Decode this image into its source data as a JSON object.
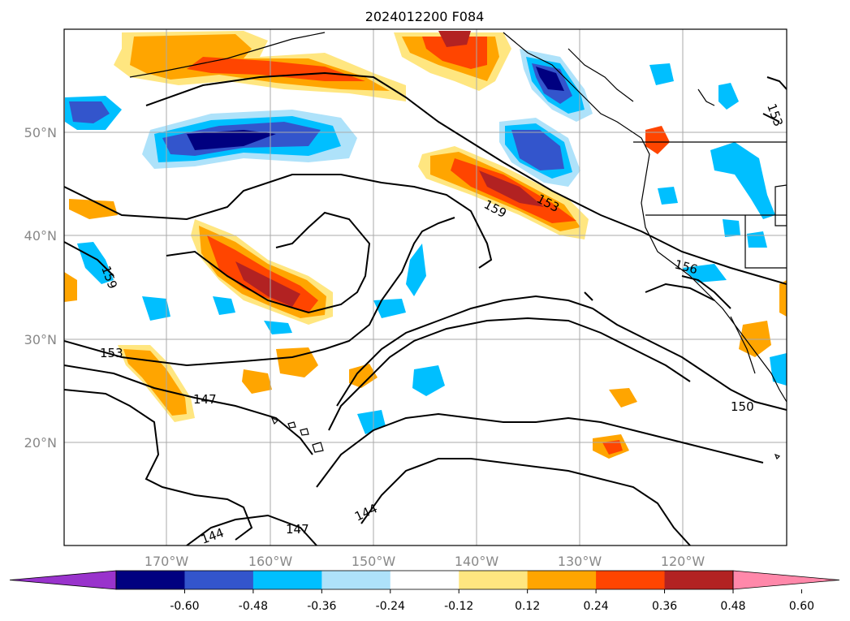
{
  "title": "2024012200 F084",
  "map": {
    "lon_range": [
      180,
      110
    ],
    "lat_range": [
      10,
      60
    ],
    "x_axis_labels": [
      "170°W",
      "160°W",
      "150°W",
      "140°W",
      "130°W",
      "120°W"
    ],
    "y_axis_labels": [
      "20°N",
      "30°N",
      "40°N",
      "50°N"
    ],
    "contour_labels": [
      "153",
      "159",
      "153",
      "159",
      "156",
      "153",
      "147",
      "150",
      "144",
      "147",
      "144"
    ],
    "contour_color": "#000000"
  },
  "colorbar": {
    "ticks": [
      "-0.60",
      "-0.48",
      "-0.36",
      "-0.24",
      "-0.12",
      "0.12",
      "0.24",
      "0.36",
      "0.48",
      "0.60"
    ],
    "colors": [
      "#9933cc",
      "#000080",
      "#3355cc",
      "#00bfff",
      "#aee2fa",
      "#ffffff",
      "#ffe680",
      "#ffa500",
      "#ff4500",
      "#b22222",
      "#ff88aa"
    ]
  }
}
